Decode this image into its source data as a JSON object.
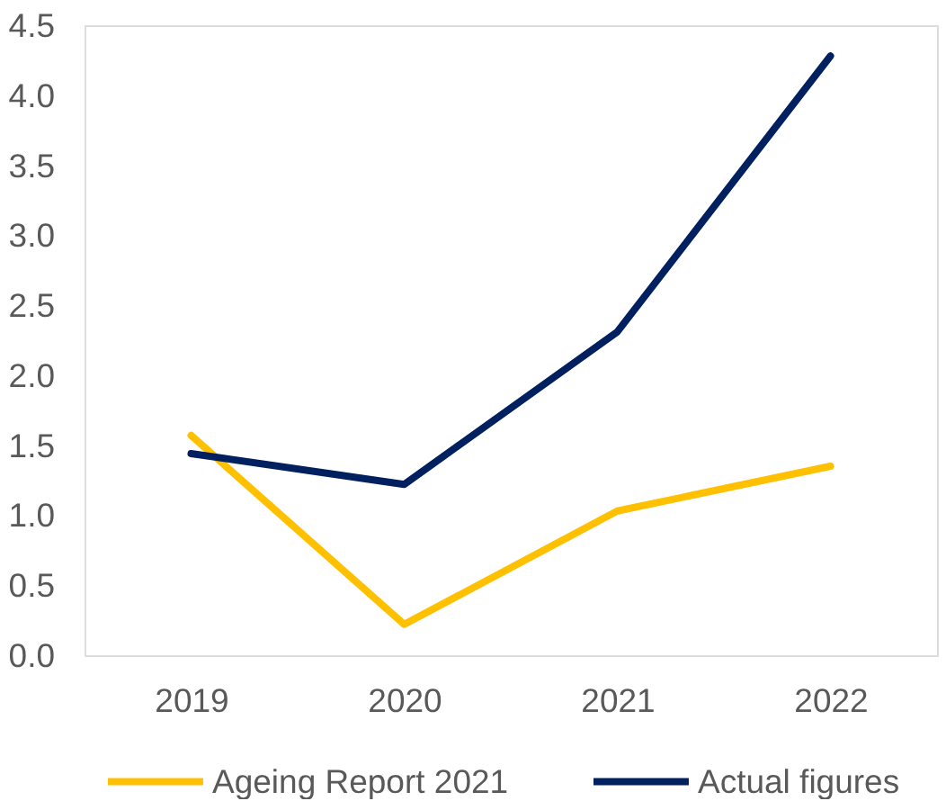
{
  "chart_data": {
    "type": "line",
    "categories": [
      "2019",
      "2020",
      "2021",
      "2022"
    ],
    "series": [
      {
        "name": "Ageing Report 2021",
        "color": "#ffc000",
        "values": [
          1.57,
          0.22,
          1.03,
          1.35
        ]
      },
      {
        "name": "Actual figures",
        "color": "#002060",
        "values": [
          1.44,
          1.22,
          2.31,
          4.28
        ]
      }
    ],
    "ylim": [
      0,
      4.5
    ],
    "yticks": [
      {
        "value": 0,
        "label": "0.0"
      },
      0.5,
      {
        "value": 1,
        "label": "1.0"
      },
      1.5,
      {
        "value": 2,
        "label": "2.0"
      },
      2.5,
      {
        "value": 3,
        "label": "3.0"
      },
      3.5,
      {
        "value": 4,
        "label": "4.0"
      },
      4.5
    ],
    "grid": false,
    "legend": "bottom",
    "line_style": "solid"
  }
}
